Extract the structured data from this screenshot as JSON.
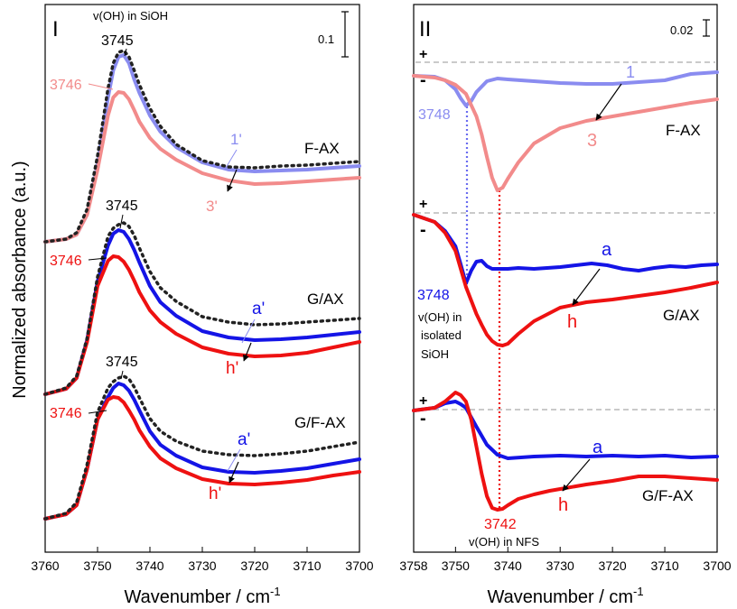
{
  "colors": {
    "frame": "#000000",
    "f_blue": "#8a8cf0",
    "f_pink": "#f28b8b",
    "g_blue": "#1414e6",
    "g_red": "#ee1111",
    "dotted": "#222222",
    "dashed": "#aaaaaa"
  },
  "ylabel": "Normalized absorbance (a.u.)",
  "xlabel": "Wavenumber / cm",
  "xlabel_sup": "-1",
  "chart_data": [
    {
      "type": "line",
      "panel": "I",
      "xlim": [
        3760,
        3700
      ],
      "ticks": [
        "3760",
        "3750",
        "3740",
        "3730",
        "3720",
        "3710",
        "3700"
      ],
      "scale_bar": "0.1",
      "series": [
        {
          "group": "F-AX",
          "name": "1'",
          "style": "solid",
          "colorKey": "f_blue",
          "offset": 268,
          "x": [
            3760,
            3756,
            3754,
            3752,
            3750,
            3748,
            3747,
            3746,
            3745,
            3744,
            3743,
            3742,
            3740,
            3738,
            3735,
            3730,
            3725,
            3720,
            3715,
            3710,
            3705,
            3700
          ],
          "y": [
            0,
            3,
            8,
            30,
            85,
            160,
            190,
            205,
            207,
            198,
            180,
            165,
            140,
            122,
            105,
            88,
            80,
            78,
            79,
            80,
            82,
            84
          ]
        },
        {
          "group": "F-AX",
          "name": "3'",
          "style": "solid",
          "colorKey": "f_pink",
          "offset": 268,
          "x": [
            3760,
            3756,
            3754,
            3752,
            3750,
            3748,
            3747,
            3746,
            3745,
            3744,
            3743,
            3742,
            3740,
            3738,
            3735,
            3730,
            3725,
            3720,
            3715,
            3710,
            3705,
            3700
          ],
          "y": [
            0,
            3,
            8,
            30,
            80,
            140,
            160,
            166,
            165,
            158,
            146,
            133,
            115,
            103,
            91,
            76,
            68,
            64,
            65,
            67,
            69,
            71
          ]
        },
        {
          "group": "F-AX",
          "name": "",
          "style": "dotted",
          "colorKey": "dotted",
          "offset": 268,
          "x": [
            3760,
            3756,
            3754,
            3752,
            3750,
            3748,
            3747,
            3746,
            3745,
            3744,
            3743,
            3742,
            3740,
            3738,
            3735,
            3730,
            3725,
            3720,
            3715,
            3710,
            3705,
            3700
          ],
          "y": [
            0,
            3,
            10,
            36,
            95,
            170,
            198,
            210,
            212,
            205,
            190,
            174,
            148,
            128,
            108,
            90,
            83,
            82,
            84,
            85,
            87,
            89
          ]
        },
        {
          "group": "G/AX",
          "name": "a'",
          "style": "solid",
          "colorKey": "g_blue",
          "offset": 437,
          "x": [
            3760,
            3756,
            3754,
            3752,
            3750,
            3748,
            3747,
            3746,
            3745,
            3744,
            3743,
            3742,
            3740,
            3738,
            3735,
            3730,
            3725,
            3720,
            3715,
            3710,
            3705,
            3700
          ],
          "y": [
            0,
            6,
            18,
            60,
            125,
            165,
            178,
            182,
            180,
            172,
            160,
            146,
            120,
            102,
            87,
            70,
            63,
            60,
            61,
            63,
            66,
            69
          ]
        },
        {
          "group": "G/AX",
          "name": "h'",
          "style": "solid",
          "colorKey": "g_red",
          "offset": 437,
          "x": [
            3760,
            3756,
            3754,
            3752,
            3750,
            3748,
            3747,
            3746,
            3745,
            3744,
            3743,
            3742,
            3740,
            3738,
            3735,
            3730,
            3725,
            3720,
            3715,
            3710,
            3705,
            3700
          ],
          "y": [
            0,
            6,
            18,
            58,
            120,
            148,
            153,
            152,
            147,
            138,
            126,
            113,
            93,
            80,
            67,
            52,
            45,
            42,
            43,
            46,
            52,
            58
          ]
        },
        {
          "group": "G/AX",
          "name": "",
          "style": "dotted",
          "colorKey": "dotted",
          "offset": 437,
          "x": [
            3760,
            3756,
            3754,
            3752,
            3750,
            3748,
            3747,
            3746,
            3745,
            3744,
            3743,
            3742,
            3740,
            3738,
            3735,
            3730,
            3725,
            3720,
            3715,
            3710,
            3705,
            3700
          ],
          "y": [
            0,
            7,
            20,
            62,
            130,
            175,
            184,
            188,
            190,
            186,
            176,
            162,
            136,
            118,
            103,
            86,
            80,
            77,
            78,
            80,
            82,
            84
          ]
        },
        {
          "group": "G/F-AX",
          "name": "a'",
          "style": "solid",
          "colorKey": "g_blue",
          "offset": 575,
          "x": [
            3760,
            3756,
            3754,
            3752,
            3750,
            3748,
            3747,
            3746,
            3745,
            3744,
            3743,
            3742,
            3740,
            3738,
            3735,
            3730,
            3725,
            3720,
            3715,
            3710,
            3705,
            3700
          ],
          "y": [
            0,
            5,
            15,
            55,
            110,
            135,
            145,
            150,
            148,
            142,
            132,
            120,
            97,
            82,
            70,
            57,
            52,
            51,
            53,
            56,
            61,
            66
          ]
        },
        {
          "group": "G/F-AX",
          "name": "h'",
          "style": "solid",
          "colorKey": "g_red",
          "offset": 575,
          "x": [
            3760,
            3756,
            3754,
            3752,
            3750,
            3748,
            3747,
            3746,
            3745,
            3744,
            3743,
            3742,
            3740,
            3738,
            3735,
            3730,
            3725,
            3720,
            3715,
            3710,
            3705,
            3700
          ],
          "y": [
            0,
            5,
            15,
            55,
            110,
            132,
            135,
            134,
            129,
            120,
            110,
            98,
            80,
            67,
            56,
            44,
            39,
            38,
            40,
            43,
            48,
            52
          ]
        },
        {
          "group": "G/F-AX",
          "name": "",
          "style": "dotted",
          "colorKey": "dotted",
          "offset": 575,
          "x": [
            3760,
            3756,
            3754,
            3752,
            3750,
            3748,
            3747,
            3746,
            3745,
            3744,
            3743,
            3742,
            3740,
            3738,
            3735,
            3730,
            3725,
            3720,
            3715,
            3710,
            3705,
            3700
          ],
          "y": [
            0,
            6,
            18,
            60,
            118,
            145,
            152,
            156,
            158,
            155,
            146,
            134,
            111,
            97,
            86,
            75,
            71,
            70,
            72,
            75,
            80,
            85
          ]
        }
      ]
    },
    {
      "type": "line",
      "panel": "II",
      "xlim": [
        3758,
        3700
      ],
      "ticks": [
        "3758",
        "3750",
        "3740",
        "3730",
        "3720",
        "3710",
        "3700"
      ],
      "scale_bar": "0.02",
      "series": [
        {
          "group": "F-AX",
          "name": "1",
          "style": "solid",
          "colorKey": "f_blue",
          "offset": 84,
          "x": [
            3758,
            3754,
            3752,
            3750,
            3749,
            3748,
            3747,
            3746,
            3744,
            3742,
            3740,
            3735,
            3730,
            3725,
            3720,
            3715,
            3710,
            3705,
            3700
          ],
          "y": [
            0,
            -1,
            -5,
            -15,
            -25,
            -33,
            -28,
            -18,
            -6,
            -3,
            -4,
            -6,
            -8,
            -9,
            -9,
            -7,
            -5,
            2,
            4
          ]
        },
        {
          "group": "F-AX",
          "name": "3",
          "style": "solid",
          "colorKey": "f_pink",
          "offset": 84,
          "x": [
            3758,
            3754,
            3752,
            3750,
            3748,
            3746,
            3745,
            3744,
            3743,
            3742,
            3741,
            3740,
            3738,
            3735,
            3730,
            3725,
            3720,
            3715,
            3710,
            3705,
            3700
          ],
          "y": [
            0,
            -2,
            -5,
            -10,
            -20,
            -45,
            -65,
            -90,
            -113,
            -127,
            -124,
            -114,
            -96,
            -75,
            -58,
            -50,
            -45,
            -40,
            -35,
            -30,
            -26
          ]
        },
        {
          "group": "G/AX",
          "name": "a",
          "style": "solid",
          "colorKey": "g_blue",
          "offset": 238,
          "x": [
            3758,
            3754,
            3752,
            3750,
            3749,
            3748,
            3747,
            3746,
            3745,
            3744,
            3743,
            3742,
            3740,
            3738,
            3735,
            3730,
            3727,
            3724,
            3721,
            3718,
            3715,
            3712,
            3709,
            3706,
            3703,
            3700
          ],
          "y": [
            0,
            -8,
            -18,
            -35,
            -55,
            -76,
            -62,
            -52,
            -51,
            -57,
            -60,
            -60,
            -60,
            -59,
            -60,
            -58,
            -56,
            -54,
            -56,
            -60,
            -62,
            -59,
            -57,
            -58,
            -56,
            -55
          ]
        },
        {
          "group": "G/AX",
          "name": "h",
          "style": "solid",
          "colorKey": "g_red",
          "offset": 238,
          "x": [
            3758,
            3754,
            3752,
            3750,
            3749,
            3748,
            3747,
            3746,
            3745,
            3744,
            3743,
            3742,
            3741,
            3740,
            3738,
            3735,
            3730,
            3725,
            3720,
            3715,
            3710,
            3705,
            3700
          ],
          "y": [
            0,
            -8,
            -20,
            -40,
            -60,
            -80,
            -95,
            -110,
            -122,
            -133,
            -140,
            -144,
            -145,
            -143,
            -132,
            -118,
            -103,
            -97,
            -94,
            -90,
            -86,
            -81,
            -75
          ]
        },
        {
          "group": "G/F-AX",
          "name": "a",
          "style": "solid",
          "colorKey": "g_blue",
          "offset": 455,
          "x": [
            3758,
            3754,
            3752,
            3750,
            3749,
            3748,
            3746,
            3744,
            3742,
            3740,
            3735,
            3730,
            3725,
            3720,
            3715,
            3710,
            3705,
            3700
          ],
          "y": [
            0,
            3,
            8,
            10,
            7,
            3,
            -18,
            -38,
            -49,
            -53,
            -51,
            -50,
            -51,
            -50,
            -51,
            -50,
            -52,
            -51
          ]
        },
        {
          "group": "G/F-AX",
          "name": "h",
          "style": "solid",
          "colorKey": "g_red",
          "offset": 455,
          "x": [
            3758,
            3754,
            3752,
            3750,
            3749,
            3748,
            3747,
            3746,
            3745,
            3744,
            3743,
            3742,
            3741,
            3740,
            3738,
            3735,
            3732,
            3730,
            3725,
            3720,
            3715,
            3710,
            3705,
            3700
          ],
          "y": [
            0,
            3,
            10,
            20,
            17,
            10,
            -10,
            -40,
            -70,
            -95,
            -108,
            -110,
            -109,
            -105,
            -98,
            -93,
            -89,
            -87,
            -82,
            -78,
            -73,
            -73,
            -75,
            -77
          ]
        }
      ]
    }
  ],
  "panel1": {
    "label": "I",
    "scale_bar": "0.1",
    "annotations": {
      "voh_label": "v(OH) in SiOH",
      "peak_f": "3745",
      "peak_g": "3745",
      "peak_gf": "3745",
      "pink_f": "3746",
      "red_g": "3746",
      "red_gf": "3746",
      "lbl_1p": "1'",
      "lbl_3p": "3'",
      "lbl_ap_g": "a'",
      "lbl_hp_g": "h'",
      "lbl_ap_gf": "a'",
      "lbl_hp_gf": "h'",
      "name_f": "F-AX",
      "name_g": "G/AX",
      "name_gf": "G/F-AX"
    }
  },
  "panel2": {
    "label": "II",
    "scale_bar": "0.02",
    "annotations": {
      "plus": "+",
      "minus": "-",
      "w3748_f": "3748",
      "w3748_g": "3748",
      "voh_isolated_1": "v(OH) in",
      "voh_isolated_2": "isolated",
      "voh_isolated_3": "SiOH",
      "w3742": "3742",
      "voh_nfs": "v(OH) in NFS",
      "lbl_1": "1",
      "lbl_3": "3",
      "lbl_a_g": "a",
      "lbl_h_g": "h",
      "lbl_a_gf": "a",
      "lbl_h_gf": "h",
      "name_f": "F-AX",
      "name_g": "G/AX",
      "name_gf": "G/F-AX"
    }
  }
}
